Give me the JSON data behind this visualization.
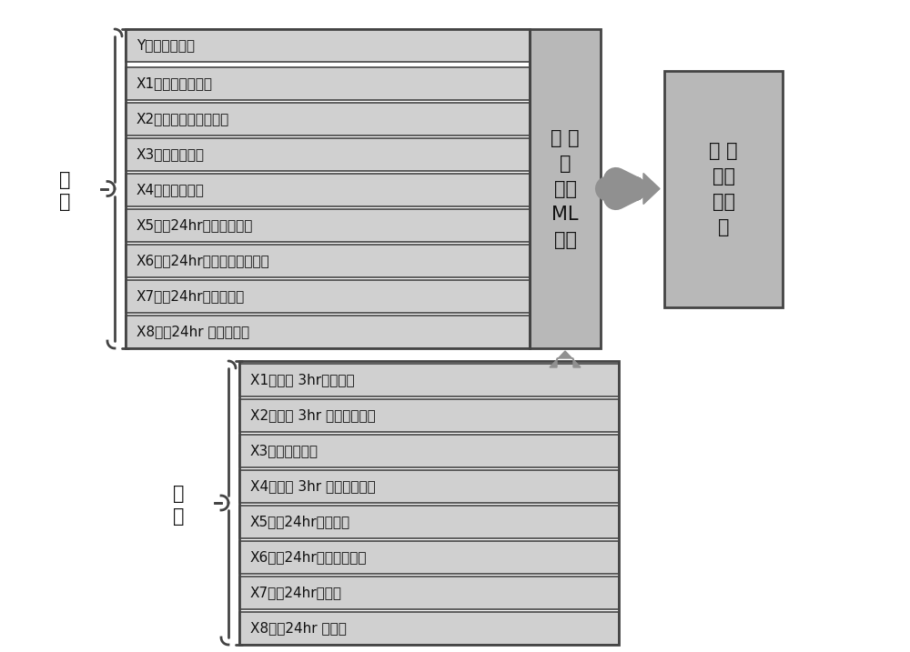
{
  "train_y_row": "Y：回水温历史",
  "train_x_rows": [
    "X1：室外气温历史",
    "X2：室外相对湿度历史",
    "X3：进水温历史",
    "X4：室内温历史",
    "X5：前24hr室外气温历史",
    "X6：前24hr室外相对湿度历史",
    "X7：前24hr进水温历史",
    "X8：前24hr 室内温历史"
  ],
  "predict_rows": [
    "X1：未来 3hr室外气温",
    "X2：未来 3hr 室外相对湿度",
    "X3：当前进水温",
    "X4：未来 3hr 室内温设定值",
    "X5：前24hr室外气温",
    "X6：前24hr室外相对湿度",
    "X7：前24hr进水温",
    "X8：前24hr 室内温"
  ],
  "ml_lines": [
    "回 水",
    "温",
    "预测",
    "ML",
    "模型"
  ],
  "result_lines": [
    "回 水",
    "温预",
    "测结",
    "果"
  ],
  "train_label_lines": [
    "训",
    "练"
  ],
  "predict_label_lines": [
    "预",
    "测"
  ],
  "box_fill_light": "#d0d0d0",
  "box_fill_mid": "#b8b8b8",
  "box_edge": "#444444",
  "text_color": "#111111",
  "arrow_color": "#909090",
  "row_fontsize": 11,
  "label_fontsize": 15,
  "ml_fontsize": 15,
  "result_fontsize": 15
}
